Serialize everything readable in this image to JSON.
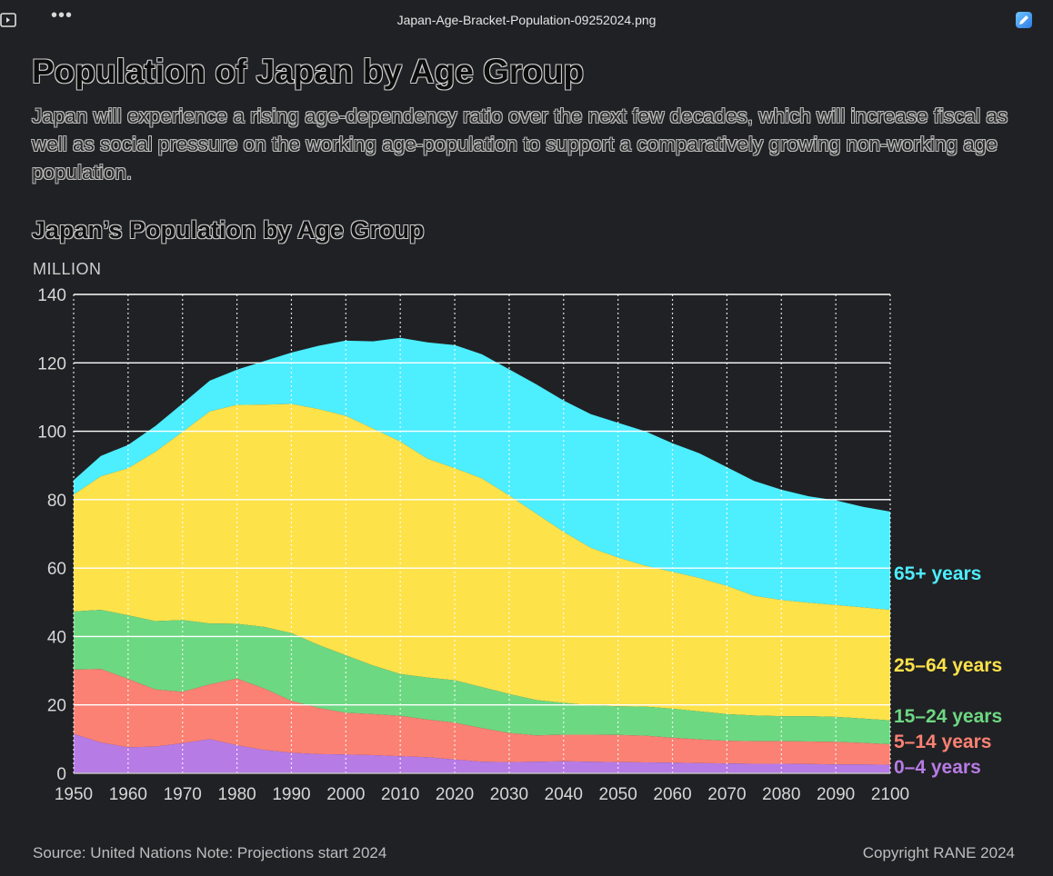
{
  "window": {
    "filename": "Japan-Age-Bracket-Population-09252024.png",
    "menu_glyph": "•••",
    "left_icon": "sidebar-panel-icon",
    "right_icon": "edit-image-icon"
  },
  "headline": "Population of Japan by Age Group",
  "subtitle": "Japan will experience a rising age-dependency ratio over the next few decades, which will increase fiscal as well as social pressure on the working age-population to support a comparatively growing non-working age population.",
  "footer": {
    "source": "Source: United Nations   Note: Projections start 2024",
    "copyright": "Copyright RANE 2024"
  },
  "chart_data": {
    "type": "area",
    "stacked": true,
    "title": "Japan’s Population by Age Group",
    "ylabel": "MILLION",
    "xlabel": "",
    "xlim": [
      1950,
      2100
    ],
    "ylim": [
      0,
      140
    ],
    "x_ticks": [
      1950,
      1960,
      1970,
      1980,
      1990,
      2000,
      2010,
      2020,
      2030,
      2040,
      2050,
      2060,
      2070,
      2080,
      2090,
      2100
    ],
    "y_ticks": [
      0,
      20,
      40,
      60,
      80,
      100,
      120,
      140
    ],
    "grid": true,
    "legend": "direct labels at right end",
    "x": [
      1950,
      1955,
      1960,
      1965,
      1970,
      1975,
      1980,
      1985,
      1990,
      1995,
      2000,
      2005,
      2010,
      2015,
      2020,
      2025,
      2030,
      2035,
      2040,
      2045,
      2050,
      2055,
      2060,
      2065,
      2070,
      2075,
      2080,
      2085,
      2090,
      2095,
      2100
    ],
    "series": [
      {
        "name": "0–4 years",
        "color": "#b77be6",
        "values": [
          11.5,
          9.0,
          7.6,
          7.8,
          8.8,
          10.0,
          8.2,
          6.8,
          6.0,
          5.6,
          5.5,
          5.3,
          5.0,
          4.7,
          4.0,
          3.4,
          3.3,
          3.4,
          3.5,
          3.4,
          3.3,
          3.2,
          3.1,
          3.0,
          2.9,
          2.8,
          2.8,
          2.7,
          2.6,
          2.6,
          2.5
        ]
      },
      {
        "name": "5–14 years",
        "color": "#fa8173",
        "values": [
          18.8,
          21.5,
          20.0,
          16.7,
          15.0,
          16.0,
          19.5,
          18.0,
          15.2,
          13.5,
          12.2,
          12.0,
          11.8,
          11.0,
          10.8,
          9.8,
          8.5,
          7.7,
          7.8,
          7.9,
          7.9,
          7.8,
          7.3,
          6.9,
          6.6,
          6.6,
          6.6,
          6.6,
          6.6,
          6.3,
          6.0
        ]
      },
      {
        "name": "15–24 years",
        "color": "#6dd882",
        "values": [
          17.0,
          17.3,
          18.6,
          20.0,
          21.0,
          17.8,
          16.0,
          18.0,
          19.8,
          18.4,
          16.8,
          14.2,
          12.2,
          12.3,
          12.4,
          12.0,
          11.4,
          10.3,
          9.3,
          8.6,
          8.4,
          8.5,
          8.5,
          8.2,
          7.8,
          7.5,
          7.3,
          7.4,
          7.3,
          7.1,
          7.0
        ]
      },
      {
        "name": "25–64 years",
        "color": "#fde24a",
        "values": [
          34.2,
          39.0,
          43.0,
          49.5,
          55.0,
          62.0,
          64.0,
          65.0,
          67.0,
          69.0,
          70.0,
          69.3,
          68.0,
          64.0,
          62.0,
          61.0,
          58.0,
          54.5,
          50.0,
          46.0,
          43.5,
          41.2,
          40.0,
          39.0,
          37.5,
          35.0,
          34.0,
          33.2,
          32.7,
          32.5,
          32.3
        ]
      },
      {
        "name": "65+ years",
        "color": "#4deefe",
        "values": [
          4.2,
          6.0,
          6.8,
          7.5,
          8.3,
          9.0,
          10.3,
          12.7,
          15.0,
          18.5,
          22.0,
          25.5,
          30.3,
          34.0,
          36.0,
          36.3,
          36.9,
          37.8,
          38.4,
          39.1,
          39.4,
          39.3,
          37.6,
          36.4,
          34.7,
          33.6,
          32.2,
          31.1,
          30.6,
          29.4,
          28.7
        ]
      }
    ]
  }
}
